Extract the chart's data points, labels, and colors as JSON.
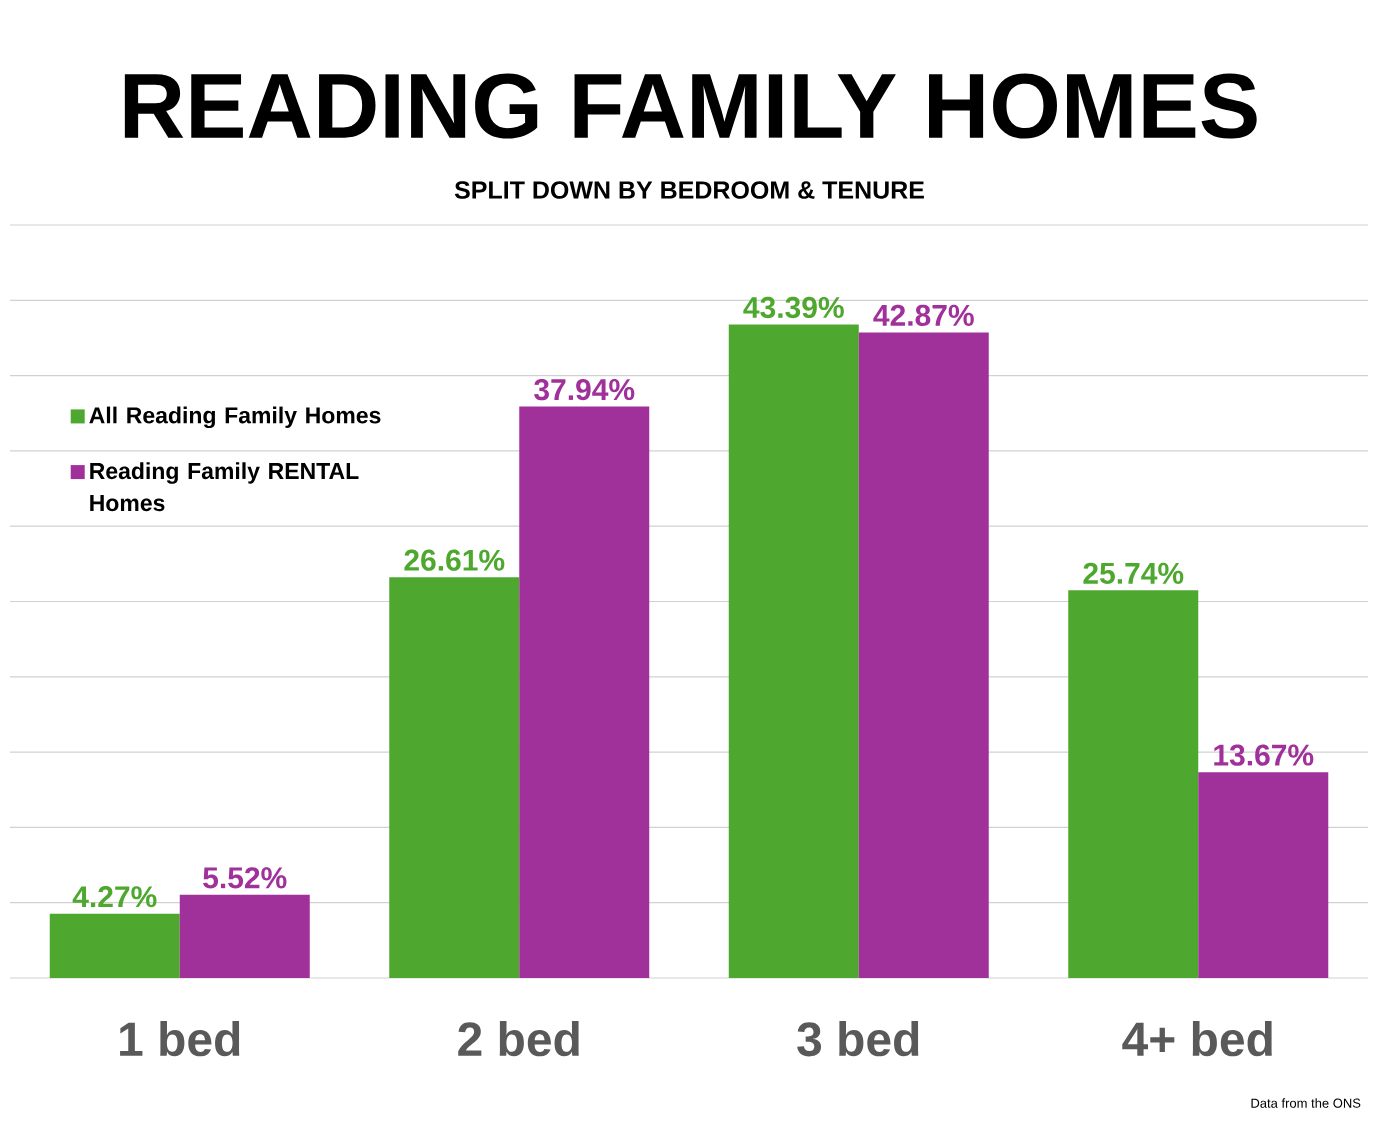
{
  "chart_data": {
    "type": "bar",
    "title": "READING FAMILY HOMES",
    "subtitle": "SPLIT DOWN BY BEDROOM & TENURE",
    "categories": [
      "1 bed",
      "2 bed",
      "3 bed",
      "4+ bed"
    ],
    "series": [
      {
        "name": "All Reading Family Homes",
        "color": "#4ea72e",
        "values": [
          4.27,
          26.61,
          43.39,
          25.74
        ],
        "value_labels": [
          "4.27%",
          "26.61%",
          "43.39%",
          "25.74%"
        ]
      },
      {
        "name": "Reading Family RENTAL Homes",
        "color": "#a0309a",
        "values": [
          5.52,
          37.94,
          42.87,
          13.67
        ],
        "value_labels": [
          "5.52%",
          "37.94%",
          "42.87%",
          "13.67%"
        ]
      }
    ],
    "ylim": [
      0,
      50
    ],
    "yticks": [
      {
        "value": 0,
        "label": null
      },
      {
        "value": 5,
        "label": null
      },
      {
        "value": 10,
        "label": null
      },
      {
        "value": 15,
        "label": null
      },
      {
        "value": 20,
        "label": null
      },
      {
        "value": 25,
        "label": null
      },
      {
        "value": 30,
        "label": null
      },
      {
        "value": 35,
        "label": null
      },
      {
        "value": 40,
        "label": null
      },
      {
        "value": 45,
        "label": null
      },
      {
        "value": 50,
        "label": null
      }
    ],
    "grid": "y",
    "legend": "top left",
    "tick_labels": "x",
    "annotations": [
      "Data from the ONS"
    ]
  }
}
